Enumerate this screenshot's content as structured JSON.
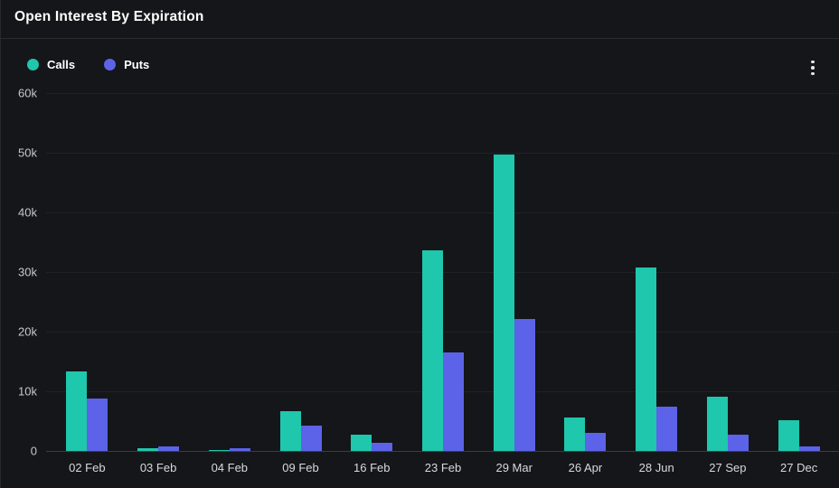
{
  "header": {
    "title": "Open Interest By Expiration"
  },
  "legend": {
    "items": [
      {
        "label": "Calls",
        "color": "#1fc7ac"
      },
      {
        "label": "Puts",
        "color": "#5c63e8"
      }
    ]
  },
  "menu": {
    "icon": "kebab-menu-icon"
  },
  "colors": {
    "background": "#141619",
    "calls": "#1fc7ac",
    "puts": "#5c63e8",
    "grid": "#1f2225",
    "zero_line": "#3a3d42",
    "axis_text": "#c7c8ca",
    "x_text": "#d8d9da",
    "title_text": "#ffffff"
  },
  "chart_data": {
    "type": "bar",
    "title": "Open Interest By Expiration",
    "categories": [
      "02 Feb",
      "03 Feb",
      "04 Feb",
      "09 Feb",
      "16 Feb",
      "23 Feb",
      "29 Mar",
      "26 Apr",
      "28 Jun",
      "27 Sep",
      "27 Dec"
    ],
    "series": [
      {
        "name": "Calls",
        "color": "#1fc7ac",
        "values": [
          13300,
          500,
          100,
          6700,
          2700,
          33700,
          49700,
          5600,
          30700,
          9100,
          5200
        ]
      },
      {
        "name": "Puts",
        "color": "#5c63e8",
        "values": [
          8800,
          700,
          400,
          4200,
          1400,
          16500,
          22100,
          3100,
          7400,
          2700,
          800
        ]
      }
    ],
    "xlabel": "",
    "ylabel": "",
    "ylim": [
      0,
      60000
    ],
    "yticks": {
      "values": [
        0,
        10000,
        20000,
        30000,
        40000,
        50000,
        60000
      ],
      "labels": [
        "0",
        "10k",
        "20k",
        "30k",
        "40k",
        "50k",
        "60k"
      ]
    },
    "grid": true,
    "legend_position": "top-left"
  }
}
